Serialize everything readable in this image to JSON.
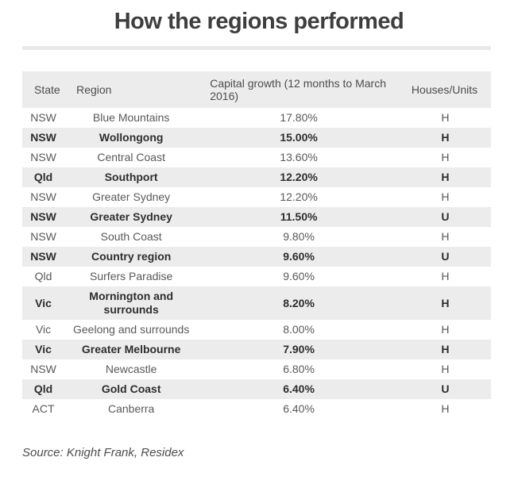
{
  "title": "How the regions performed",
  "source": "Source: Knight Frank, Residex",
  "colors": {
    "stripe_gray": "#ececec",
    "divider_gray": "#e9e9e9",
    "title_text": "#3e3e3e",
    "body_text": "#595959",
    "bold_row_text": "#2e2e2e"
  },
  "table": {
    "columns": [
      "State",
      "Region",
      "Capital growth (12 months to March 2016)",
      "Houses/Units"
    ],
    "rows": [
      {
        "state": "NSW",
        "region": "Blue Mountains",
        "growth": "17.80%",
        "type": "H"
      },
      {
        "state": "NSW",
        "region": "Wollongong",
        "growth": "15.00%",
        "type": "H"
      },
      {
        "state": "NSW",
        "region": "Central Coast",
        "growth": "13.60%",
        "type": "H"
      },
      {
        "state": "Qld",
        "region": "Southport",
        "growth": "12.20%",
        "type": "H"
      },
      {
        "state": "NSW",
        "region": "Greater Sydney",
        "growth": "12.20%",
        "type": "H"
      },
      {
        "state": "NSW",
        "region": "Greater Sydney",
        "growth": "11.50%",
        "type": "U"
      },
      {
        "state": "NSW",
        "region": "South Coast",
        "growth": "9.80%",
        "type": "H"
      },
      {
        "state": "NSW",
        "region": "Country region",
        "growth": "9.60%",
        "type": "U"
      },
      {
        "state": "Qld",
        "region": "Surfers Paradise",
        "growth": "9.60%",
        "type": "H"
      },
      {
        "state": "Vic",
        "region": "Mornington and surrounds",
        "growth": "8.20%",
        "type": "H"
      },
      {
        "state": "Vic",
        "region": "Geelong and surrounds",
        "growth": "8.00%",
        "type": "H"
      },
      {
        "state": "Vic",
        "region": "Greater Melbourne",
        "growth": "7.90%",
        "type": "H"
      },
      {
        "state": "NSW",
        "region": "Newcastle",
        "growth": "6.80%",
        "type": "H"
      },
      {
        "state": "Qld",
        "region": "Gold Coast",
        "growth": "6.40%",
        "type": "U"
      },
      {
        "state": "ACT",
        "region": "Canberra",
        "growth": "6.40%",
        "type": "H"
      }
    ]
  },
  "chart_data": {
    "type": "table",
    "title": "How the regions performed",
    "columns": [
      "State",
      "Region",
      "Capital growth (12 months to March 2016)",
      "Houses/Units"
    ],
    "rows": [
      [
        "NSW",
        "Blue Mountains",
        "17.80%",
        "H"
      ],
      [
        "NSW",
        "Wollongong",
        "15.00%",
        "H"
      ],
      [
        "NSW",
        "Central Coast",
        "13.60%",
        "H"
      ],
      [
        "Qld",
        "Southport",
        "12.20%",
        "H"
      ],
      [
        "NSW",
        "Greater Sydney",
        "12.20%",
        "H"
      ],
      [
        "NSW",
        "Greater Sydney",
        "11.50%",
        "U"
      ],
      [
        "NSW",
        "South Coast",
        "9.80%",
        "H"
      ],
      [
        "NSW",
        "Country region",
        "9.60%",
        "U"
      ],
      [
        "Qld",
        "Surfers Paradise",
        "9.60%",
        "H"
      ],
      [
        "Vic",
        "Mornington and surrounds",
        "8.20%",
        "H"
      ],
      [
        "Vic",
        "Geelong and surrounds",
        "8.00%",
        "H"
      ],
      [
        "Vic",
        "Greater Melbourne",
        "7.90%",
        "H"
      ],
      [
        "NSW",
        "Newcastle",
        "6.80%",
        "H"
      ],
      [
        "Qld",
        "Gold Coast",
        "6.40%",
        "U"
      ],
      [
        "ACT",
        "Canberra",
        "6.40%",
        "H"
      ]
    ],
    "source": "Source: Knight Frank, Residex",
    "layout_hints": {
      "zebra_striping": true,
      "striped_rows_bold": true,
      "header_align": "left",
      "body_align": "center"
    }
  }
}
